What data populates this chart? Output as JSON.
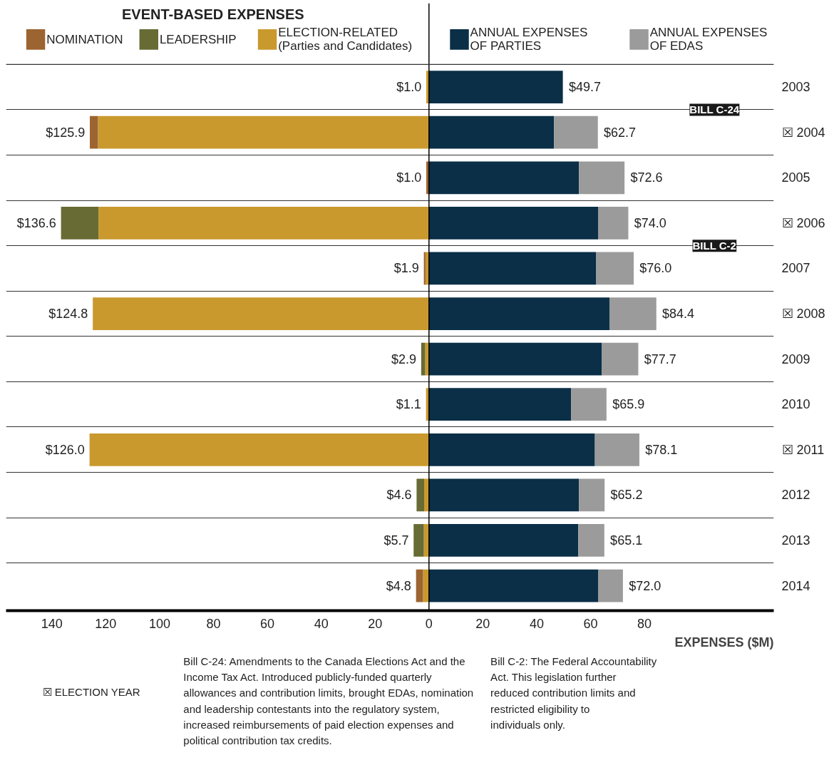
{
  "chart_data": {
    "type": "bar",
    "orientation": "horizontal",
    "stacked": true,
    "legend_title": "EVENT-BASED EXPENSES",
    "xlabel": "EXPENSES ($M)",
    "categories": [
      "2003",
      "☒ 2004",
      "2005",
      "☒ 2006",
      "2007",
      "☒ 2008",
      "2009",
      "2010",
      "☒ 2011",
      "2012",
      "2013",
      "2014"
    ],
    "series": [
      {
        "name": "ELECTION-RELATED\n(Parties and Candidates)",
        "color": "#c9992e",
        "values": [
          -1.0,
          -122.9,
          0,
          -122.7,
          -1.3,
          -124.8,
          -1.4,
          -1.1,
          -126.0,
          -1.8,
          -1.9,
          -2.2
        ]
      },
      {
        "name": "LEADERSHIP",
        "color": "#686b34",
        "values": [
          0,
          0,
          0,
          -13.9,
          0,
          0,
          -1.5,
          0,
          0,
          -2.8,
          -3.8,
          0
        ]
      },
      {
        "name": "NOMINATION",
        "color": "#9c6430",
        "values": [
          0,
          -3.0,
          -1.0,
          0,
          -0.6,
          0,
          0,
          0,
          0,
          0,
          0,
          -2.6
        ]
      },
      {
        "name": "ANNUAL EXPENSES\nOF PARTIES",
        "color": "#0a2f47",
        "values": [
          49.7,
          46.4,
          55.7,
          62.9,
          62.1,
          67.0,
          64.2,
          52.8,
          61.6,
          55.7,
          55.4,
          62.9
        ]
      },
      {
        "name": "ANNUAL EXPENSES\nOF EDAS",
        "color": "#9b9b9b",
        "values": [
          0,
          16.3,
          16.9,
          11.1,
          13.9,
          17.4,
          13.5,
          13.1,
          16.5,
          9.5,
          9.7,
          9.1
        ]
      }
    ],
    "totals": [
      [
        "$1.0",
        "$49.7"
      ],
      [
        "$125.9",
        "$62.7"
      ],
      [
        "$1.0",
        "$72.6"
      ],
      [
        "$136.6",
        "$74.0"
      ],
      [
        "$1.9",
        "$76.0"
      ],
      [
        "$124.8",
        "$84.4"
      ],
      [
        "$2.9",
        "$77.7"
      ],
      [
        "$1.1",
        "$65.9"
      ],
      [
        "$126.0",
        "$78.1"
      ],
      [
        "$4.6",
        "$65.2"
      ],
      [
        "$5.7",
        "$65.1"
      ],
      [
        "$4.8",
        "$72.0"
      ]
    ],
    "xlim": [
      -157,
      128
    ],
    "xticks": [
      {
        "value": -140,
        "label": "140"
      },
      {
        "value": -120,
        "label": "120"
      },
      {
        "value": -100,
        "label": "100"
      },
      {
        "value": -80,
        "label": "80"
      },
      {
        "value": -60,
        "label": "60"
      },
      {
        "value": -40,
        "label": "40"
      },
      {
        "value": -20,
        "label": "20"
      },
      0,
      20,
      40,
      60,
      80
    ],
    "ref_lines": [
      {
        "axis": "x",
        "value": 0,
        "color": "#000000"
      }
    ],
    "grid": "y",
    "legend": "top",
    "annotations": [
      "☒ ELECTION YEAR",
      "Bill C-24: Amendments to the Canada Elections Act and the Income Tax Act. Introduced publicly-funded quarterly allowances and contribution limits, brought EDAs, nomination and leadership contestants into the regulatory system, increased reimbursements of paid election expenses and political contribution tax credits.",
      "Bill C-2: The Federal Accountability Act. This legislation further reduced contribution limits and restricted eligibility to individuals only.",
      "BILL C-24",
      "BILL C-2"
    ]
  }
}
